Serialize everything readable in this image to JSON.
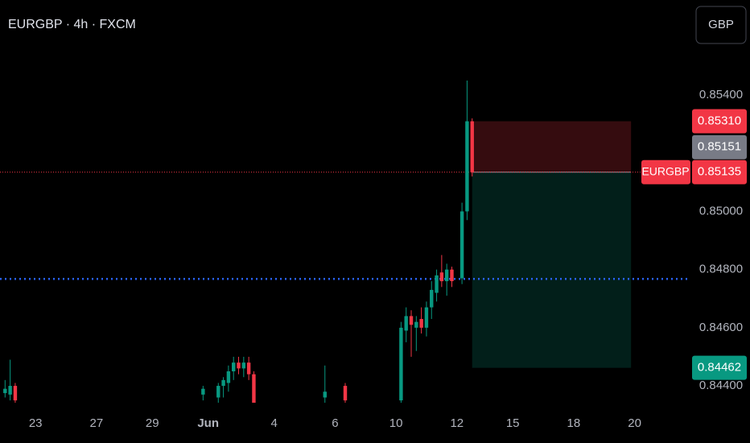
{
  "chart_data": {
    "type": "candlestick",
    "title": "EURGBP · 4h · FXCM",
    "currency_button": "GBP",
    "colors": {
      "up": "#089981",
      "down": "#f23645",
      "background": "#000000",
      "hline": "#2962ff",
      "price_line": "#f23645"
    },
    "x": [
      1,
      2,
      3,
      40,
      43,
      44,
      45,
      46,
      47,
      48,
      49,
      50,
      64,
      68,
      79,
      80,
      81,
      82,
      83,
      84,
      85,
      86,
      87,
      88,
      89,
      91,
      92,
      93
    ],
    "open": [
      0.84375,
      0.8437,
      0.844,
      0.8437,
      0.8436,
      0.844,
      0.8441,
      0.8445,
      0.8448,
      0.8446,
      0.8448,
      0.8444,
      0.8436,
      0.844,
      0.8435,
      0.8459,
      0.8464,
      0.846,
      0.8463,
      0.846,
      0.8467,
      0.8472,
      0.8479,
      0.8476,
      0.848,
      0.8477,
      0.85,
      0.8531
    ],
    "high": [
      0.8442,
      0.8449,
      0.8441,
      0.844,
      0.8441,
      0.8443,
      0.8447,
      0.845,
      0.845,
      0.845,
      0.845,
      0.8445,
      0.8447,
      0.8441,
      0.8462,
      0.8467,
      0.8466,
      0.8464,
      0.8467,
      0.8469,
      0.8476,
      0.848,
      0.8485,
      0.8482,
      0.8481,
      0.8503,
      0.8545,
      0.8532
    ],
    "low": [
      0.8436,
      0.8435,
      0.843,
      0.8435,
      0.8434,
      0.8436,
      0.8438,
      0.8442,
      0.8444,
      0.8443,
      0.8442,
      0.843,
      0.843,
      0.843,
      0.8432,
      0.8455,
      0.845,
      0.8452,
      0.8458,
      0.8457,
      0.8463,
      0.8469,
      0.8474,
      0.8471,
      0.8474,
      0.8475,
      0.8497,
      0.8512
    ],
    "close": [
      0.8439,
      0.844,
      0.8435,
      0.8439,
      0.844,
      0.8442,
      0.8445,
      0.8448,
      0.8446,
      0.8448,
      0.8444,
      0.8434,
      0.8438,
      0.8435,
      0.846,
      0.8464,
      0.8461,
      0.8462,
      0.846,
      0.8467,
      0.8473,
      0.8478,
      0.8476,
      0.848,
      0.8476,
      0.85,
      0.8531,
      0.85135
    ],
    "xlim": [
      0,
      136
    ],
    "xticks": [
      {
        "value": 7,
        "label": "23"
      },
      {
        "value": 19,
        "label": "27"
      },
      {
        "value": 30,
        "label": "29"
      },
      {
        "value": 41,
        "label": "Jun"
      },
      {
        "value": 54,
        "label": "4"
      },
      {
        "value": 66,
        "label": "6"
      },
      {
        "value": 78,
        "label": "10"
      },
      {
        "value": 90,
        "label": "12"
      },
      {
        "value": 101,
        "label": "15"
      },
      {
        "value": 113,
        "label": "18"
      },
      {
        "value": 125,
        "label": "20"
      }
    ],
    "ylim": [
      0.84342,
      0.85727
    ],
    "yticks": [
      {
        "value": 0.844,
        "label": "0.84400"
      },
      {
        "value": 0.846,
        "label": "0.84600"
      },
      {
        "value": 0.848,
        "label": "0.84800"
      },
      {
        "value": 0.85,
        "label": "0.85000"
      },
      {
        "value": 0.854,
        "label": "0.85400"
      }
    ],
    "hline": 0.84768,
    "position": {
      "x_start": 93,
      "x_end": 124.3,
      "stop": 0.8531,
      "entry": 0.85135,
      "target": 0.84462
    },
    "price_labels": [
      {
        "value": 0.8531,
        "label": "0.85310",
        "color": "#f23645"
      },
      {
        "value": 0.85151,
        "label": "0.85151",
        "color": "#787b86"
      },
      {
        "value": 0.85135,
        "label": "0.85135",
        "color": "#f23645",
        "symbol": "EURGBP"
      },
      {
        "value": 0.84462,
        "label": "0.84462",
        "color": "#089981"
      }
    ]
  }
}
